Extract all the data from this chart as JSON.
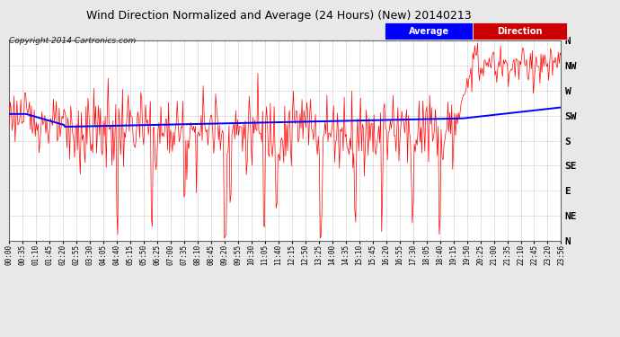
{
  "title": "Wind Direction Normalized and Average (24 Hours) (New) 20140213",
  "copyright": "Copyright 2014 Cartronics.com",
  "background_color": "#e8e8e8",
  "plot_bg_color": "#ffffff",
  "ytick_labels": [
    "N",
    "NW",
    "W",
    "SW",
    "S",
    "SE",
    "E",
    "NE",
    "N"
  ],
  "ytick_values": [
    360,
    315,
    270,
    225,
    180,
    135,
    90,
    45,
    0
  ],
  "ylim_min": 0,
  "ylim_max": 360,
  "grid_color": "#999999",
  "line_red_color": "#ff0000",
  "line_blue_color": "#0000ff",
  "legend_avg_color": "#0000ff",
  "legend_dir_color": "#cc0000",
  "xtick_labels": [
    "00:00",
    "00:35",
    "01:10",
    "01:45",
    "02:20",
    "02:55",
    "03:30",
    "04:05",
    "04:40",
    "05:15",
    "05:50",
    "06:25",
    "07:00",
    "07:35",
    "08:10",
    "08:45",
    "09:20",
    "09:55",
    "10:30",
    "11:05",
    "11:40",
    "12:15",
    "12:50",
    "13:25",
    "14:00",
    "14:35",
    "15:10",
    "15:45",
    "16:20",
    "16:55",
    "17:30",
    "18:05",
    "18:40",
    "19:15",
    "19:50",
    "20:25",
    "21:00",
    "21:35",
    "22:10",
    "22:45",
    "23:20",
    "23:56"
  ]
}
